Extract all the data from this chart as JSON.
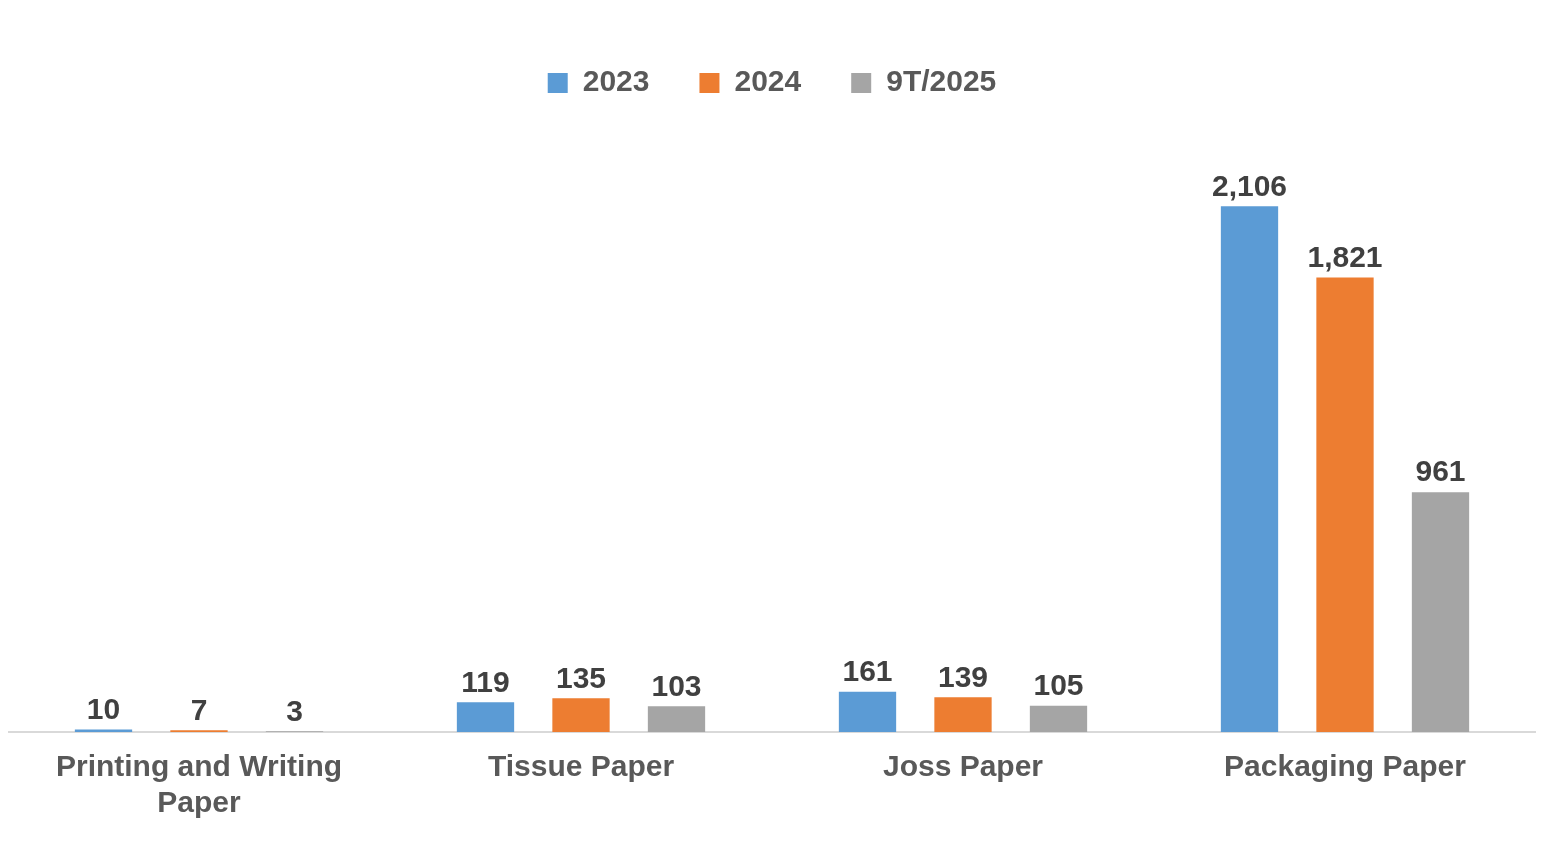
{
  "chart_data": {
    "type": "bar",
    "categories": [
      "Printing and Writing Paper",
      "Tissue Paper",
      "Joss Paper",
      "Packaging Paper"
    ],
    "series": [
      {
        "name": "2023",
        "color": "#5b9bd5",
        "values": [
          10,
          119,
          161,
          2106
        ],
        "value_labels": [
          "10",
          "119",
          "161",
          "2,106"
        ]
      },
      {
        "name": "2024",
        "color": "#ed7d31",
        "values": [
          7,
          135,
          139,
          1821
        ],
        "value_labels": [
          "7",
          "135",
          "139",
          "1,821"
        ]
      },
      {
        "name": "9T/2025",
        "color": "#a5a5a5",
        "values": [
          3,
          103,
          105,
          961
        ],
        "value_labels": [
          "3",
          "103",
          "105",
          "961"
        ]
      }
    ],
    "legend": "top",
    "grid": false,
    "tick_labels": "x"
  }
}
